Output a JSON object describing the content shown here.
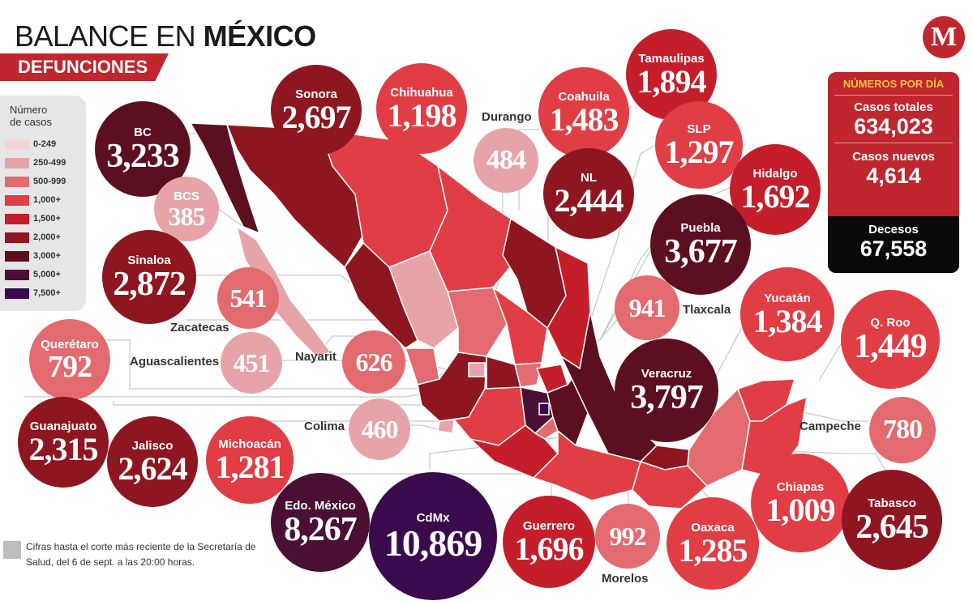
{
  "header": {
    "title_regular": "BALANCE EN ",
    "title_bold": "MÉXICO",
    "subtitle": "DEFUNCIONES",
    "logo": "M"
  },
  "legend": {
    "title_line1": "Número",
    "title_line2": "de casos",
    "items": [
      {
        "label": "0-249",
        "color": "#f4d4d6"
      },
      {
        "label": "250-499",
        "color": "#e7a4a8"
      },
      {
        "label": "500-999",
        "color": "#e36b6f"
      },
      {
        "label": "1,000+",
        "color": "#e03d44"
      },
      {
        "label": "1,500+",
        "color": "#c41e2a"
      },
      {
        "label": "2,000+",
        "color": "#8e1620"
      },
      {
        "label": "3,000+",
        "color": "#5c0f1e"
      },
      {
        "label": "5,000+",
        "color": "#4a0f35"
      },
      {
        "label": "7,500+",
        "color": "#3a0a4d"
      }
    ]
  },
  "states": {
    "bc": {
      "name": "BC",
      "value": "3,233"
    },
    "sonora": {
      "name": "Sonora",
      "value": "2,697"
    },
    "chihuahua": {
      "name": "Chihuahua",
      "value": "1,198"
    },
    "coahuila": {
      "name": "Coahuila",
      "value": "1,483"
    },
    "tamaulipas": {
      "name": "Tamaulipas",
      "value": "1,894"
    },
    "durango": {
      "name": "Durango",
      "value": "484"
    },
    "nl": {
      "name": "NL",
      "value": "2,444"
    },
    "slp": {
      "name": "SLP",
      "value": "1,297"
    },
    "hidalgo": {
      "name": "Hidalgo",
      "value": "1,692"
    },
    "bcs": {
      "name": "BCS",
      "value": "385"
    },
    "puebla": {
      "name": "Puebla",
      "value": "3,677"
    },
    "sinaloa": {
      "name": "Sinaloa",
      "value": "2,872"
    },
    "zacatecas": {
      "name": "Zacatecas",
      "value": "541"
    },
    "tlaxcala": {
      "name": "Tlaxcala",
      "value": "941"
    },
    "yucatan": {
      "name": "Yucatán",
      "value": "1,384"
    },
    "qroo": {
      "name": "Q. Roo",
      "value": "1,449"
    },
    "queretaro": {
      "name": "Querétaro",
      "value": "792"
    },
    "aguascalientes": {
      "name": "Aguascalientes",
      "value": "451"
    },
    "nayarit": {
      "name": "Nayarit",
      "value": "626"
    },
    "veracruz": {
      "name": "Veracruz",
      "value": "3,797"
    },
    "guanajuato": {
      "name": "Guanajuato",
      "value": "2,315"
    },
    "jalisco": {
      "name": "Jalisco",
      "value": "2,624"
    },
    "michoacan": {
      "name": "Michoacán",
      "value": "1,281"
    },
    "colima": {
      "name": "Colima",
      "value": "460"
    },
    "campeche": {
      "name": "Campeche",
      "value": "780"
    },
    "chiapas": {
      "name": "Chiapas",
      "value": "1,009"
    },
    "edomex": {
      "name": "Edo. México",
      "value": "8,267"
    },
    "cdmx": {
      "name": "CdMx",
      "value": "10,869"
    },
    "guerrero": {
      "name": "Guerrero",
      "value": "1,696"
    },
    "morelos": {
      "name": "Morelos",
      "value": "992"
    },
    "oaxaca": {
      "name": "Oaxaca",
      "value": "1,285"
    },
    "tabasco": {
      "name": "Tabasco",
      "value": "2,645"
    }
  },
  "stats": {
    "header": "NÚMEROS POR DÍA",
    "total_label": "Casos totales",
    "total_value": "634,023",
    "new_label": "Casos nuevos",
    "new_value": "4,614",
    "deaths_label": "Decesos",
    "deaths_value": "67,558"
  },
  "footnote": "Cifras hasta el corte más reciente de la Secretaría de Salud, del 6 de sept. a las 20:00 horas."
}
